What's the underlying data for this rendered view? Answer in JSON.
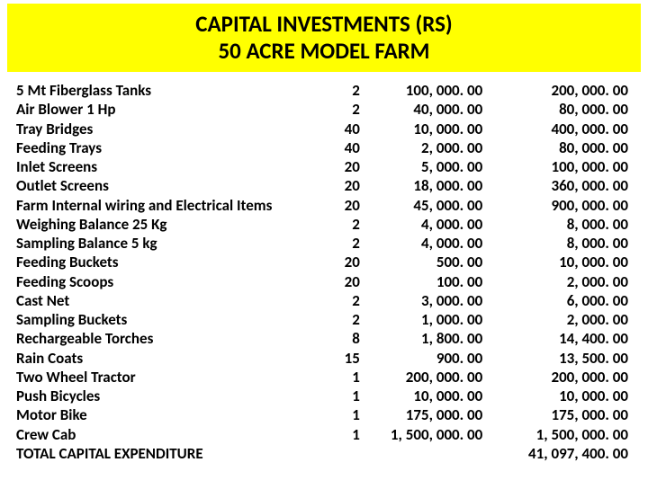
{
  "header": {
    "line1": "CAPITAL INVESTMENTS (RS)",
    "line2": "50 ACRE MODEL FARM",
    "bg_color": "#ffff00",
    "title_fontsize": 25,
    "title_weight": "bold"
  },
  "table": {
    "columns": [
      "item",
      "qty",
      "unit_cost",
      "total_cost"
    ],
    "font_size": 17,
    "rows": [
      {
        "item": "5 Mt Fiberglass Tanks",
        "qty": "2",
        "unit": "100, 000. 00",
        "total": "200, 000. 00"
      },
      {
        "item": "Air Blower 1 Hp",
        "qty": "2",
        "unit": "40, 000. 00",
        "total": "80, 000. 00"
      },
      {
        "item": "Tray Bridges",
        "qty": "40",
        "unit": "10, 000. 00",
        "total": "400, 000. 00"
      },
      {
        "item": "Feeding Trays",
        "qty": "40",
        "unit": "2, 000. 00",
        "total": "80, 000. 00"
      },
      {
        "item": "Inlet Screens",
        "qty": "20",
        "unit": "5, 000. 00",
        "total": "100, 000. 00"
      },
      {
        "item": "Outlet Screens",
        "qty": "20",
        "unit": "18, 000. 00",
        "total": "360, 000. 00"
      },
      {
        "item": "Farm Internal wiring and Electrical Items",
        "qty": "20",
        "unit": "45, 000. 00",
        "total": "900, 000. 00"
      },
      {
        "item": "Weighing Balance 25 Kg",
        "qty": "2",
        "unit": "4, 000. 00",
        "total": "8, 000. 00"
      },
      {
        "item": "Sampling Balance 5 kg",
        "qty": "2",
        "unit": "4, 000. 00",
        "total": "8, 000. 00"
      },
      {
        "item": "Feeding Buckets",
        "qty": "20",
        "unit": "500. 00",
        "total": "10, 000. 00"
      },
      {
        "item": "Feeding Scoops",
        "qty": "20",
        "unit": "100. 00",
        "total": "2, 000. 00"
      },
      {
        "item": "Cast Net",
        "qty": "2",
        "unit": "3, 000. 00",
        "total": "6, 000. 00"
      },
      {
        "item": "Sampling Buckets",
        "qty": "2",
        "unit": "1, 000. 00",
        "total": "2, 000. 00"
      },
      {
        "item": "Rechargeable Torches",
        "qty": "8",
        "unit": "1, 800. 00",
        "total": "14, 400. 00"
      },
      {
        "item": "Rain Coats",
        "qty": "15",
        "unit": "900. 00",
        "total": "13, 500. 00"
      },
      {
        "item": "Two Wheel Tractor",
        "qty": "1",
        "unit": "200, 000. 00",
        "total": "200, 000. 00"
      },
      {
        "item": "Push Bicycles",
        "qty": "1",
        "unit": "10, 000. 00",
        "total": "10, 000. 00"
      },
      {
        "item": "Motor Bike",
        "qty": "1",
        "unit": "175, 000. 00",
        "total": "175, 000. 00"
      },
      {
        "item": "Crew Cab",
        "qty": "1",
        "unit": "1, 500, 000. 00",
        "total": "1, 500, 000. 00"
      }
    ],
    "total_row": {
      "item": "TOTAL CAPITAL EXPENDITURE",
      "qty": "",
      "unit": "",
      "total": "41, 097, 400. 00"
    }
  }
}
